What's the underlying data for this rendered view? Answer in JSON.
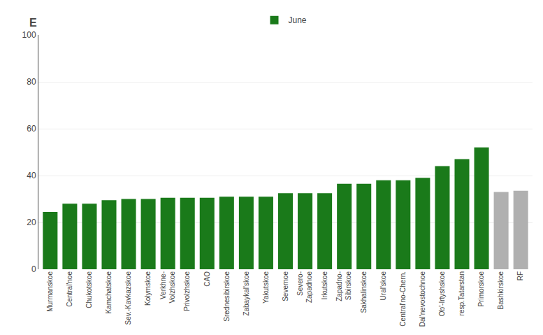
{
  "chart_data": {
    "type": "bar",
    "ylabel": "E",
    "categories": [
      "Murmanskoe",
      "Central'noe",
      "Chukotskoe",
      "Kamchatskoe",
      "Sev.-Kavkazskoe",
      "Kolymskoe",
      "Verkhne-\nVolzhskoe",
      "Privolzhskoe",
      "CAO",
      "Srednesibirskoe",
      "Zabaykal'skoe",
      "Yakutskoe",
      "Severnoe",
      "Severo-\nZapadnoe",
      "Irkutskoe",
      "Zapadno-\nSibirskoe",
      "Sakhalinskoe",
      "Ural'skoe",
      "Central'no-Chern.",
      "Dal'nevostochnoe",
      "Ob'-Irtyshskoe",
      "resp.Tatarstan",
      "Primorskoe",
      "Bashkirskoe",
      "RF"
    ],
    "series": [
      {
        "name": "June",
        "values": [
          24.5,
          28.0,
          28.0,
          29.5,
          30.0,
          30.0,
          30.5,
          30.5,
          30.5,
          31.0,
          31.0,
          31.0,
          32.5,
          32.5,
          32.5,
          36.5,
          36.5,
          38.0,
          38.0,
          39.0,
          44.0,
          47.0,
          52.0,
          33.0,
          33.5
        ],
        "colors": [
          "#1a7a1a",
          "#1a7a1a",
          "#1a7a1a",
          "#1a7a1a",
          "#1a7a1a",
          "#1a7a1a",
          "#1a7a1a",
          "#1a7a1a",
          "#1a7a1a",
          "#1a7a1a",
          "#1a7a1a",
          "#1a7a1a",
          "#1a7a1a",
          "#1a7a1a",
          "#1a7a1a",
          "#1a7a1a",
          "#1a7a1a",
          "#1a7a1a",
          "#1a7a1a",
          "#1a7a1a",
          "#1a7a1a",
          "#1a7a1a",
          "#1a7a1a",
          "#b0b0b0",
          "#b0b0b0"
        ]
      }
    ],
    "ylim": [
      0,
      100
    ],
    "yticks": [
      0,
      20,
      40,
      60,
      80,
      100
    ],
    "grid": true,
    "legend": "upper center"
  }
}
